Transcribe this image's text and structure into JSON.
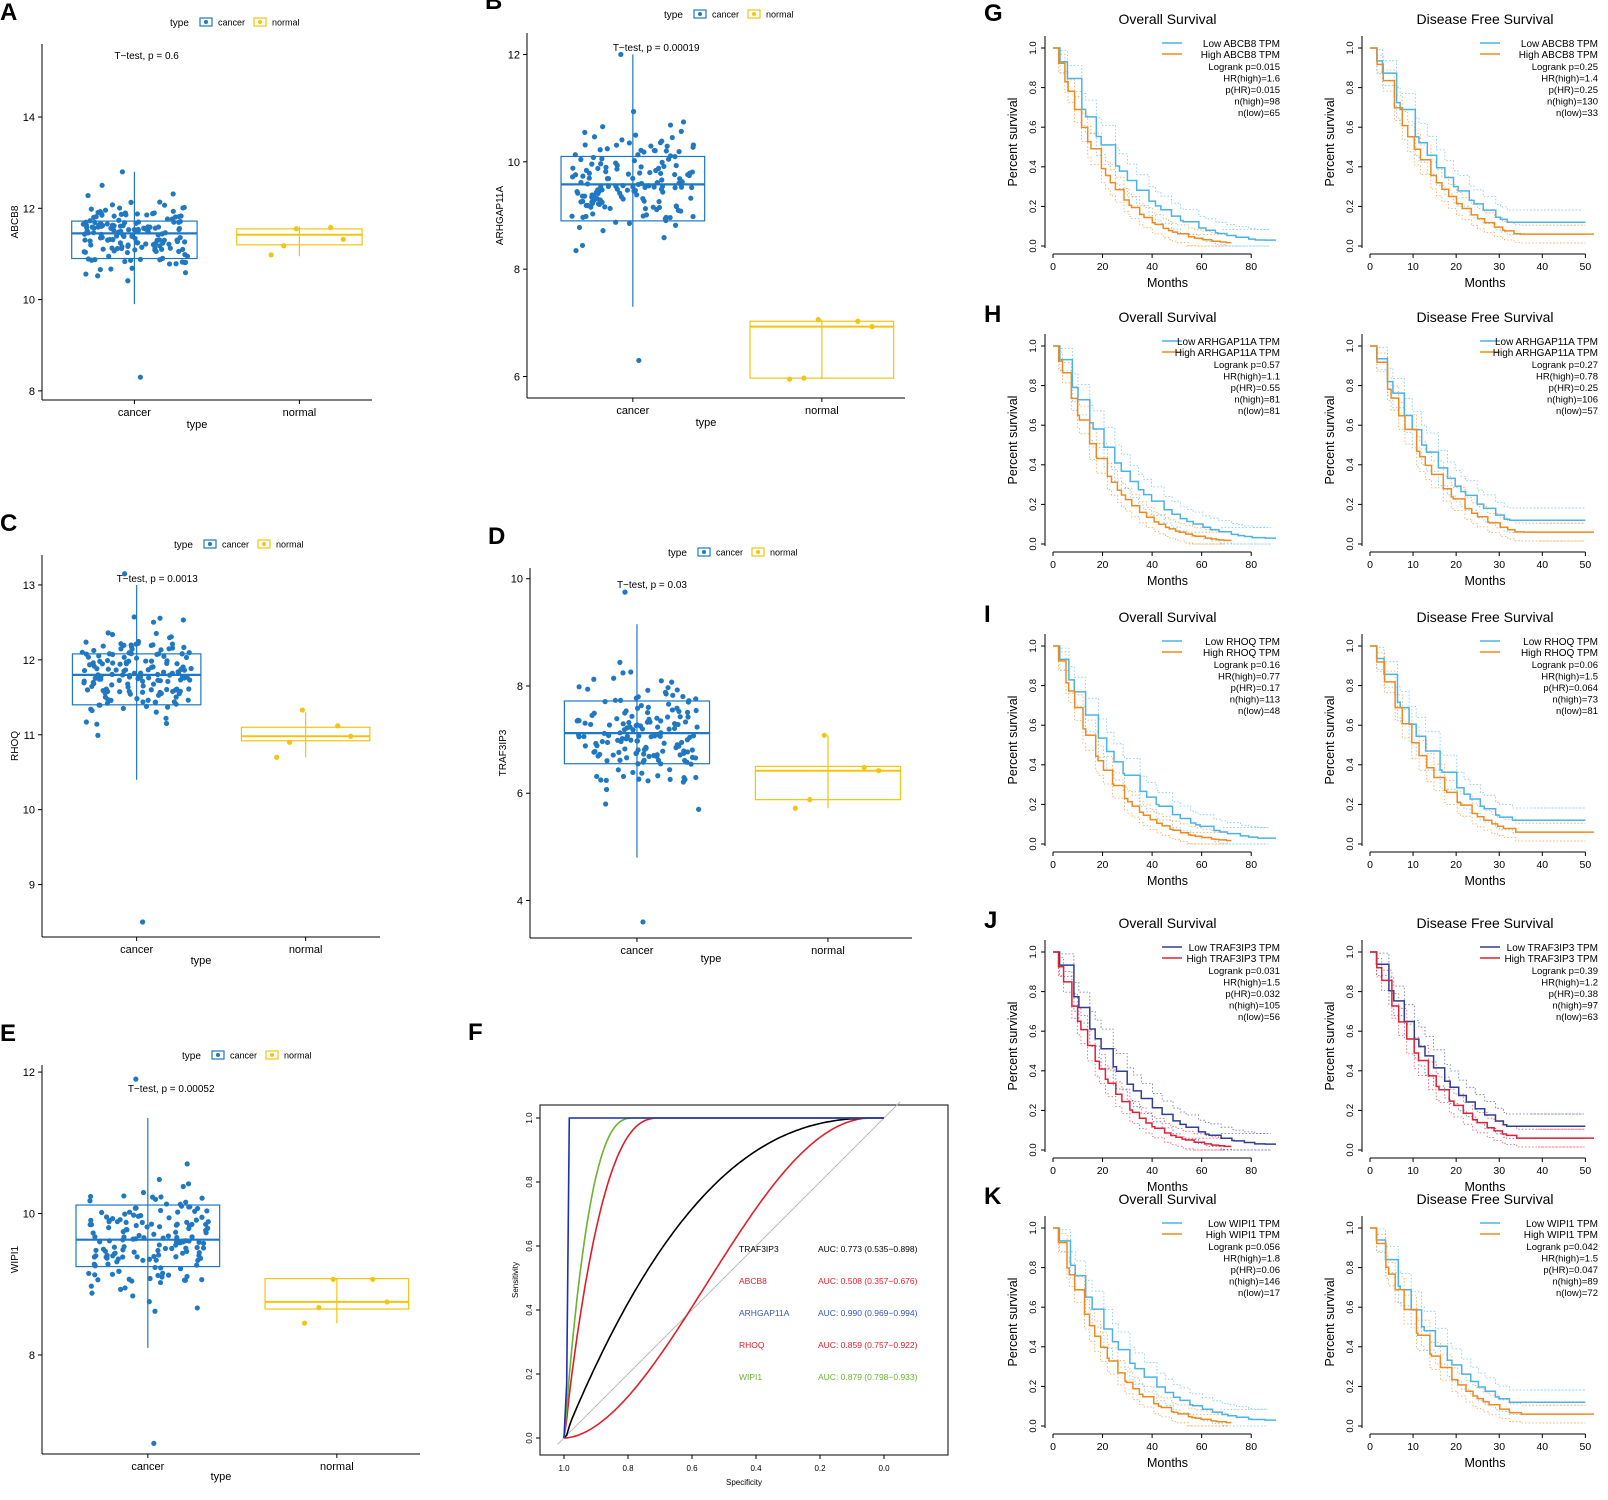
{
  "colors": {
    "cancer": "#1f78c1",
    "normal": "#f2c511",
    "km_low": "#4ab3e8",
    "km_high": "#f08a1c",
    "km_j_low": "#2e3f95",
    "km_j_high": "#e02035",
    "roc_traf3ip3": "#000000",
    "roc_abcb8": "#e0202a",
    "roc_arhgap11a": "#1c2fb5",
    "roc_rhoq": "#d91f2b",
    "roc_wipi1": "#6ab42e"
  },
  "boxplots": [
    {
      "letter": "A",
      "ylabel": "ABCB8",
      "ttest": "T−test, p = 0.6",
      "legend_title": "type",
      "legend_cancer": "cancer",
      "legend_normal": "normal",
      "xcat_cancer": "cancer",
      "xcat_normal": "normal",
      "xlabel": "type",
      "ymin": 7.8,
      "ymax": 15.6,
      "yticks": [
        8,
        10,
        12,
        14
      ],
      "cancer": {
        "q1": 10.9,
        "med": 11.45,
        "q3": 11.72,
        "wlo": 9.9,
        "whi": 12.8,
        "pmin": 8.3,
        "pmax": 12.8
      },
      "normal": {
        "q1": 11.2,
        "med": 11.42,
        "q3": 11.55,
        "wlo": 10.95,
        "whi": 11.6,
        "points": [
          11.55,
          11.58,
          11.32,
          11.18,
          10.98
        ]
      }
    },
    {
      "letter": "B",
      "ylabel": "ARHGAP11A",
      "ttest": "T−test, p = 0.00019",
      "legend_title": "type",
      "legend_cancer": "cancer",
      "legend_normal": "normal",
      "xcat_cancer": "cancer",
      "xcat_normal": "normal",
      "xlabel": "type",
      "ymin": 5.6,
      "ymax": 12.4,
      "yticks": [
        6,
        8,
        10,
        12
      ],
      "cancer": {
        "q1": 8.9,
        "med": 9.58,
        "q3": 10.1,
        "wlo": 7.3,
        "whi": 12.0,
        "pmin": 6.3,
        "pmax": 12.0
      },
      "normal": {
        "q1": 5.97,
        "med": 6.93,
        "q3": 7.03,
        "wlo": 5.95,
        "whi": 7.06,
        "points": [
          7.06,
          7.03,
          6.93,
          5.97,
          5.95
        ]
      }
    },
    {
      "letter": "C",
      "ylabel": "RHOQ",
      "ttest": "T−test, p = 0.0013",
      "legend_title": "type",
      "legend_cancer": "cancer",
      "legend_normal": "normal",
      "xcat_cancer": "cancer",
      "xcat_normal": "normal",
      "xlabel": "type",
      "ymin": 8.3,
      "ymax": 13.4,
      "yticks": [
        9,
        10,
        11,
        12,
        13
      ],
      "cancer": {
        "q1": 11.4,
        "med": 11.8,
        "q3": 12.08,
        "wlo": 10.4,
        "whi": 13.0,
        "pmin": 8.5,
        "pmax": 13.15
      },
      "normal": {
        "q1": 10.92,
        "med": 10.98,
        "q3": 11.1,
        "wlo": 10.7,
        "whi": 11.3,
        "points": [
          11.33,
          11.12,
          10.98,
          10.9,
          10.7
        ]
      }
    },
    {
      "letter": "D",
      "ylabel": "TRAF3IP3",
      "ttest": "T−test, p = 0.03",
      "legend_title": "type",
      "legend_cancer": "cancer",
      "legend_normal": "normal",
      "xcat_cancer": "cancer",
      "xcat_normal": "normal",
      "xlabel": "type",
      "ymin": 3.3,
      "ymax": 10.2,
      "yticks": [
        4,
        6,
        8,
        10
      ],
      "cancer": {
        "q1": 6.55,
        "med": 7.12,
        "q3": 7.72,
        "wlo": 4.8,
        "whi": 9.15,
        "pmin": 3.6,
        "pmax": 9.75
      },
      "normal": {
        "q1": 5.88,
        "med": 6.42,
        "q3": 6.5,
        "wlo": 5.72,
        "whi": 7.08,
        "points": [
          7.08,
          6.48,
          6.42,
          5.88,
          5.72
        ]
      }
    },
    {
      "letter": "E",
      "ylabel": "WIPI1",
      "ttest": "T−test, p = 0.00052",
      "legend_title": "type",
      "legend_cancer": "cancer",
      "legend_normal": "normal",
      "xcat_cancer": "cancer",
      "xcat_normal": "normal",
      "xlabel": "type",
      "ymin": 6.6,
      "ymax": 12.1,
      "yticks": [
        8,
        10,
        12
      ],
      "cancer": {
        "q1": 9.25,
        "med": 9.63,
        "q3": 10.12,
        "wlo": 8.1,
        "whi": 11.35,
        "pmin": 6.75,
        "pmax": 11.9
      },
      "normal": {
        "q1": 8.65,
        "med": 8.75,
        "q3": 9.08,
        "wlo": 8.45,
        "whi": 9.08,
        "points": [
          9.07,
          9.07,
          8.75,
          8.67,
          8.45
        ]
      }
    }
  ],
  "roc": {
    "letter": "F",
    "xlabel": "Specificity",
    "ylabel": "Sensitivity",
    "xticks": [
      "1.0",
      "0.8",
      "0.6",
      "0.4",
      "0.2",
      "0.0"
    ],
    "yticks": [
      "0.0",
      "0.2",
      "0.4",
      "0.6",
      "0.8",
      "1.0"
    ],
    "series": [
      {
        "name": "TRAF3IP3",
        "auc": "AUC: 0.773 (0.535−0.898)",
        "color": "#000000",
        "label_color": "#000000"
      },
      {
        "name": "ABCB8",
        "auc": "AUC: 0.508 (0.357−0.676)",
        "color": "#e0202a",
        "label_color": "#e0202a"
      },
      {
        "name": "ARHGAP11A",
        "auc": "AUC: 0.990 (0.969−0.994)",
        "color": "#1c2fb5",
        "label_color": "#3a56b0"
      },
      {
        "name": "RHOQ",
        "auc": "AUC: 0.859 (0.757−0.922)",
        "color": "#d91f2b",
        "label_color": "#d91f2b"
      },
      {
        "name": "WIPI1",
        "auc": "AUC: 0.879 (0.798−0.933)",
        "color": "#6ab42e",
        "label_color": "#6ab42e"
      }
    ]
  },
  "km_common": {
    "os_title": "Overall Survival",
    "dfs_title": "Disease Free Survival",
    "xlabel": "Months",
    "ylabel": "Percent survival",
    "yticks": [
      "0.0",
      "0.2",
      "0.4",
      "0.6",
      "0.8",
      "1.0"
    ],
    "os_xticks": [
      0,
      20,
      40,
      60,
      80
    ],
    "dfs_xticks": [
      0,
      10,
      20,
      30,
      40,
      50
    ]
  },
  "km_rows": [
    {
      "letter": "G",
      "gene": "ABCB8",
      "os": {
        "legend_low": "Low ABCB8 TPM",
        "legend_high": "High ABCB8 TPM",
        "stats": [
          "Logrank p=0.015",
          "HR(high)=1.6",
          "p(HR)=0.015",
          "n(high)=98",
          "n(low)=65"
        ]
      },
      "dfs": {
        "legend_low": "Low ABCB8 TPM",
        "legend_high": "High ABCB8 TPM",
        "stats": [
          "Logrank p=0.25",
          "HR(high)=1.4",
          "p(HR)=0.25",
          "n(high)=130",
          "n(low)=33"
        ]
      }
    },
    {
      "letter": "H",
      "gene": "ARHGAP11A",
      "os": {
        "legend_low": "Low ARHGAP11A TPM",
        "legend_high": "High ARHGAP11A TPM",
        "stats": [
          "Logrank p=0.57",
          "HR(high)=1.1",
          "p(HR)=0.55",
          "n(high)=81",
          "n(low)=81"
        ]
      },
      "dfs": {
        "legend_low": "Low ARHGAP11A TPM",
        "legend_high": "High ARHGAP11A TPM",
        "stats": [
          "Logrank p=0.27",
          "HR(high)=0.78",
          "p(HR)=0.25",
          "n(high)=106",
          "n(low)=57"
        ]
      }
    },
    {
      "letter": "I",
      "gene": "RHOQ",
      "os": {
        "legend_low": "Low RHOQ TPM",
        "legend_high": "High RHOQ TPM",
        "stats": [
          "Logrank p=0.16",
          "HR(high)=0.77",
          "p(HR)=0.17",
          "n(high)=113",
          "n(low)=48"
        ]
      },
      "dfs": {
        "legend_low": "Low RHOQ TPM",
        "legend_high": "High RHOQ TPM",
        "stats": [
          "Logrank p=0.06",
          "HR(high)=1.5",
          "p(HR)=0.064",
          "n(high)=73",
          "n(low)=81"
        ]
      }
    },
    {
      "letter": "J",
      "gene": "TRAF3IP3",
      "os": {
        "legend_low": "Low TRAF3IP3 TPM",
        "legend_high": "High TRAF3IP3 TPM",
        "stats": [
          "Logrank p=0.031",
          "HR(high)=1.5",
          "p(HR)=0.032",
          "n(high)=105",
          "n(low)=56"
        ]
      },
      "dfs": {
        "legend_low": "Low TRAF3IP3 TPM",
        "legend_high": "High TRAF3IP3 TPM",
        "stats": [
          "Logrank p=0.39",
          "HR(high)=1.2",
          "p(HR)=0.38",
          "n(high)=97",
          "n(low)=63"
        ]
      }
    },
    {
      "letter": "K",
      "gene": "WIPI1",
      "os": {
        "legend_low": "Low WIPI1 TPM",
        "legend_high": "High WIPI1 TPM",
        "stats": [
          "Logrank p=0.056",
          "HR(high)=1.8",
          "p(HR)=0.06",
          "n(high)=146",
          "n(low)=17"
        ]
      },
      "dfs": {
        "legend_low": "Low WIPI1 TPM",
        "legend_high": "High WIPI1 TPM",
        "stats": [
          "Logrank p=0.042",
          "HR(high)=1.5",
          "p(HR)=0.047",
          "n(high)=89",
          "n(low)=72"
        ]
      }
    }
  ],
  "chart_data": [
    {
      "type": "box",
      "panel": "A",
      "ylabel": "ABCB8",
      "title": "T−test, p = 0.6",
      "categories": [
        "cancer",
        "normal"
      ],
      "median": [
        11.45,
        11.42
      ],
      "q1": [
        10.9,
        11.2
      ],
      "q3": [
        11.72,
        11.55
      ]
    },
    {
      "type": "box",
      "panel": "B",
      "ylabel": "ARHGAP11A",
      "title": "T−test, p = 0.00019",
      "categories": [
        "cancer",
        "normal"
      ],
      "median": [
        9.58,
        6.93
      ],
      "q1": [
        8.9,
        5.97
      ],
      "q3": [
        10.1,
        7.03
      ]
    },
    {
      "type": "box",
      "panel": "C",
      "ylabel": "RHOQ",
      "title": "T−test, p = 0.0013",
      "categories": [
        "cancer",
        "normal"
      ],
      "median": [
        11.8,
        10.98
      ],
      "q1": [
        11.4,
        10.92
      ],
      "q3": [
        12.08,
        11.1
      ]
    },
    {
      "type": "box",
      "panel": "D",
      "ylabel": "TRAF3IP3",
      "title": "T−test, p = 0.03",
      "categories": [
        "cancer",
        "normal"
      ],
      "median": [
        7.12,
        6.42
      ],
      "q1": [
        6.55,
        5.88
      ],
      "q3": [
        7.72,
        6.5
      ]
    },
    {
      "type": "box",
      "panel": "E",
      "ylabel": "WIPI1",
      "title": "T−test, p = 0.00052",
      "categories": [
        "cancer",
        "normal"
      ],
      "median": [
        9.63,
        8.75
      ],
      "q1": [
        9.25,
        8.65
      ],
      "q3": [
        10.12,
        9.08
      ]
    },
    {
      "type": "line",
      "panel": "F",
      "xlabel": "Specificity",
      "ylabel": "Sensitivity",
      "series": [
        {
          "name": "TRAF3IP3",
          "auc": 0.773
        },
        {
          "name": "ABCB8",
          "auc": 0.508
        },
        {
          "name": "ARHGAP11A",
          "auc": 0.99
        },
        {
          "name": "RHOQ",
          "auc": 0.859
        },
        {
          "name": "WIPI1",
          "auc": 0.879
        }
      ]
    },
    {
      "type": "line",
      "panel": "G-K",
      "xlabel": "Months",
      "ylabel": "Percent survival",
      "ylim": [
        0,
        1
      ]
    }
  ]
}
